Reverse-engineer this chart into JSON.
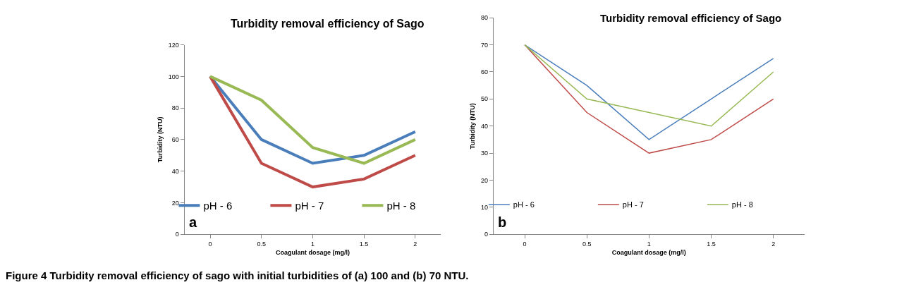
{
  "chart_data": [
    {
      "type": "line",
      "title": "Turbidity removal efficiency of Sago",
      "xlabel": "Coagulant dosage (mg/l)",
      "ylabel": "Turbidity (NTU)",
      "categories": [
        "0",
        "0.5",
        "1",
        "1.5",
        "2"
      ],
      "series": [
        {
          "name": "pH - 6",
          "color": "#4a7ebb",
          "values": [
            100,
            60,
            45,
            50,
            65
          ]
        },
        {
          "name": "pH - 7",
          "color": "#be4b48",
          "values": [
            100,
            45,
            30,
            35,
            50
          ]
        },
        {
          "name": "pH - 8",
          "color": "#98b954",
          "values": [
            100,
            85,
            55,
            45,
            60
          ]
        }
      ],
      "ylim": [
        0,
        120
      ],
      "yticks": [
        0,
        20,
        40,
        60,
        80,
        100,
        120
      ],
      "legend": "bottom",
      "marker": "none",
      "line_style": "solid",
      "annotations": [
        "a"
      ]
    },
    {
      "type": "line",
      "title": "Turbidity removal efficiency of Sago",
      "xlabel": "Coagulant dosage (mg/l)",
      "ylabel": "Turbidity (NTU)",
      "categories": [
        "0",
        "0.5",
        "1",
        "1.5",
        "2"
      ],
      "series": [
        {
          "name": "pH - 6",
          "color": "#4a7ebb",
          "values": [
            70,
            55,
            35,
            50,
            65
          ]
        },
        {
          "name": "pH - 7",
          "color": "#be4b48",
          "values": [
            70,
            45,
            30,
            35,
            50
          ]
        },
        {
          "name": "pH - 8",
          "color": "#98b954",
          "values": [
            70,
            50,
            45,
            40,
            60
          ]
        }
      ],
      "ylim": [
        0,
        80
      ],
      "yticks": [
        0,
        10,
        20,
        30,
        40,
        50,
        60,
        70,
        80
      ],
      "legend": "bottom",
      "marker": "none",
      "line_style": "solid",
      "annotations": [
        "b",
        "Figure 4 Turbidity removal efficiency of sago with initial turbidities of (a) 100 and (b) 70 NTU."
      ]
    }
  ]
}
